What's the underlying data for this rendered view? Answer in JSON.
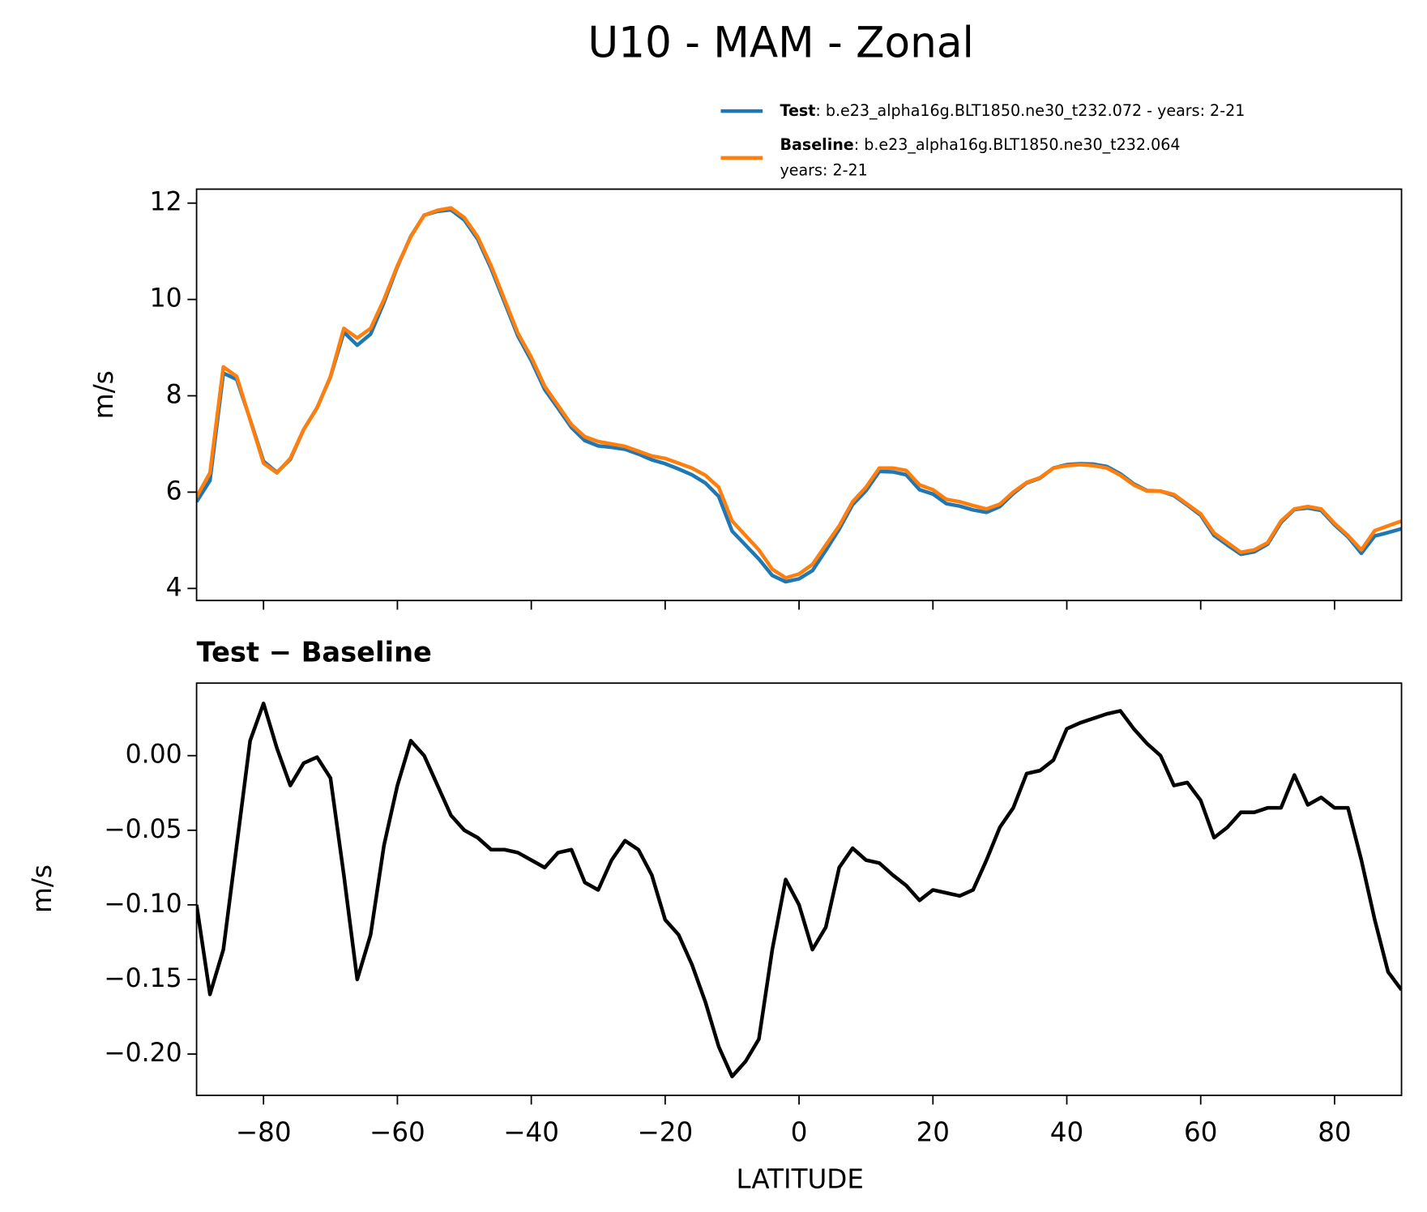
{
  "chart_data": [
    {
      "type": "line",
      "title": "U10 - MAM - Zonal",
      "ylabel": "m/s",
      "x": [
        -90,
        -88,
        -86,
        -84,
        -82,
        -80,
        -78,
        -76,
        -74,
        -72,
        -70,
        -68,
        -66,
        -64,
        -62,
        -60,
        -58,
        -56,
        -54,
        -52,
        -50,
        -48,
        -46,
        -44,
        -42,
        -40,
        -38,
        -36,
        -34,
        -32,
        -30,
        -28,
        -26,
        -24,
        -22,
        -20,
        -18,
        -16,
        -14,
        -12,
        -10,
        -8,
        -6,
        -4,
        -2,
        0,
        2,
        4,
        6,
        8,
        10,
        12,
        14,
        16,
        18,
        20,
        22,
        24,
        26,
        28,
        30,
        32,
        34,
        36,
        38,
        40,
        42,
        44,
        46,
        48,
        50,
        52,
        54,
        56,
        58,
        60,
        62,
        64,
        66,
        68,
        70,
        72,
        74,
        76,
        78,
        80,
        82,
        84,
        86,
        88,
        90
      ],
      "series": [
        {
          "name": "Test",
          "label": ": b.e23_alpha16g.BLT1850.ne30_t232.072 - years: 2-21",
          "color": "#1f77b4",
          "values": [
            5.8,
            6.24,
            8.47,
            8.34,
            7.51,
            6.64,
            6.41,
            6.68,
            7.3,
            7.75,
            8.39,
            9.32,
            9.05,
            9.28,
            9.94,
            10.68,
            11.31,
            11.75,
            11.83,
            11.86,
            11.65,
            11.25,
            10.64,
            9.94,
            9.24,
            8.73,
            8.13,
            7.74,
            7.34,
            7.07,
            6.96,
            6.93,
            6.89,
            6.79,
            6.67,
            6.59,
            6.48,
            6.36,
            6.19,
            5.91,
            5.19,
            4.9,
            4.61,
            4.27,
            4.14,
            4.2,
            4.37,
            4.79,
            5.23,
            5.74,
            6.03,
            6.43,
            6.42,
            6.36,
            6.05,
            5.96,
            5.76,
            5.71,
            5.63,
            5.58,
            5.7,
            5.97,
            6.19,
            6.29,
            6.5,
            6.57,
            6.59,
            6.58,
            6.53,
            6.38,
            6.17,
            6.03,
            6.02,
            5.93,
            5.73,
            5.52,
            5.1,
            4.9,
            4.71,
            4.76,
            4.92,
            5.37,
            5.64,
            5.67,
            5.62,
            5.32,
            5.07,
            4.73,
            5.09,
            5.16,
            5.24
          ]
        },
        {
          "name": "Baseline",
          "label_lines": [
            ": b.e23_alpha16g.BLT1850.ne30_t232.064",
            "years: 2-21"
          ],
          "color": "#ff7f0e",
          "values": [
            5.9,
            6.4,
            8.6,
            8.4,
            7.5,
            6.6,
            6.4,
            6.7,
            7.3,
            7.75,
            8.4,
            9.4,
            9.2,
            9.4,
            10.0,
            10.7,
            11.3,
            11.75,
            11.85,
            11.9,
            11.7,
            11.3,
            10.7,
            10.0,
            9.3,
            8.8,
            8.2,
            7.8,
            7.4,
            7.15,
            7.05,
            7.0,
            6.95,
            6.85,
            6.75,
            6.7,
            6.6,
            6.5,
            6.35,
            6.1,
            5.4,
            5.1,
            4.8,
            4.4,
            4.22,
            4.3,
            4.5,
            4.9,
            5.3,
            5.8,
            6.1,
            6.5,
            6.5,
            6.45,
            6.15,
            6.05,
            5.85,
            5.8,
            5.72,
            5.65,
            5.75,
            6.0,
            6.2,
            6.3,
            6.5,
            6.55,
            6.57,
            6.55,
            6.5,
            6.35,
            6.15,
            6.02,
            6.02,
            5.95,
            5.75,
            5.55,
            5.15,
            4.95,
            4.75,
            4.8,
            4.95,
            5.4,
            5.65,
            5.7,
            5.65,
            5.35,
            5.1,
            4.8,
            5.2,
            5.3,
            5.4
          ]
        }
      ],
      "xlim": [
        -90,
        90
      ],
      "ylim": [
        3.75,
        12.29
      ],
      "yticks": [
        4,
        6,
        8,
        10,
        12
      ],
      "xticks": [
        {
          "value": -80,
          "label": "−80"
        },
        {
          "value": -60,
          "label": "−60"
        },
        {
          "value": -40,
          "label": "−40"
        },
        {
          "value": -20,
          "label": "−20"
        },
        0,
        20,
        40,
        60,
        80
      ]
    },
    {
      "type": "line",
      "title": "Test − Baseline",
      "xlabel": "LATITUDE",
      "ylabel": "m/s",
      "x": [
        -90,
        -88,
        -86,
        -84,
        -82,
        -80,
        -78,
        -76,
        -74,
        -72,
        -70,
        -68,
        -66,
        -64,
        -62,
        -60,
        -58,
        -56,
        -54,
        -52,
        -50,
        -48,
        -46,
        -44,
        -42,
        -40,
        -38,
        -36,
        -34,
        -32,
        -30,
        -28,
        -26,
        -24,
        -22,
        -20,
        -18,
        -16,
        -14,
        -12,
        -10,
        -8,
        -6,
        -4,
        -2,
        0,
        2,
        4,
        6,
        8,
        10,
        12,
        14,
        16,
        18,
        20,
        22,
        24,
        26,
        28,
        30,
        32,
        34,
        36,
        38,
        40,
        42,
        44,
        46,
        48,
        50,
        52,
        54,
        56,
        58,
        60,
        62,
        64,
        66,
        68,
        70,
        72,
        74,
        76,
        78,
        80,
        82,
        84,
        86,
        88,
        90
      ],
      "series": [
        {
          "color": "#000000",
          "values": [
            -0.1,
            -0.16,
            -0.13,
            -0.06,
            0.01,
            0.035,
            0.005,
            -0.02,
            -0.005,
            -0.001,
            -0.015,
            -0.08,
            -0.15,
            -0.12,
            -0.06,
            -0.02,
            0.01,
            0.0,
            -0.02,
            -0.04,
            -0.05,
            -0.055,
            -0.063,
            -0.063,
            -0.065,
            -0.07,
            -0.075,
            -0.065,
            -0.063,
            -0.085,
            -0.09,
            -0.07,
            -0.057,
            -0.063,
            -0.08,
            -0.11,
            -0.12,
            -0.14,
            -0.165,
            -0.195,
            -0.215,
            -0.205,
            -0.19,
            -0.13,
            -0.083,
            -0.1,
            -0.13,
            -0.115,
            -0.075,
            -0.062,
            -0.07,
            -0.072,
            -0.08,
            -0.087,
            -0.097,
            -0.09,
            -0.092,
            -0.094,
            -0.09,
            -0.07,
            -0.048,
            -0.035,
            -0.012,
            -0.01,
            -0.003,
            0.018,
            0.022,
            0.025,
            0.028,
            0.03,
            0.018,
            0.008,
            0.0,
            -0.02,
            -0.018,
            -0.03,
            -0.055,
            -0.048,
            -0.038,
            -0.038,
            -0.035,
            -0.035,
            -0.013,
            -0.033,
            -0.028,
            -0.035,
            -0.035,
            -0.07,
            -0.11,
            -0.145,
            -0.157
          ]
        }
      ],
      "xlim": [
        -90,
        90
      ],
      "ylim": [
        -0.2277,
        0.0486
      ],
      "yticks": [
        {
          "value": 0,
          "label": "0.00"
        },
        {
          "value": -0.05,
          "label": "−0.05"
        },
        {
          "value": -0.1,
          "label": "−0.10"
        },
        {
          "value": -0.15,
          "label": "−0.15"
        },
        {
          "value": -0.2,
          "label": "−0.20"
        }
      ],
      "xticks": [
        {
          "value": -80,
          "label": "−80"
        },
        {
          "value": -60,
          "label": "−60"
        },
        {
          "value": -40,
          "label": "−40"
        },
        {
          "value": -20,
          "label": "−20"
        },
        0,
        20,
        40,
        60,
        80
      ]
    }
  ]
}
